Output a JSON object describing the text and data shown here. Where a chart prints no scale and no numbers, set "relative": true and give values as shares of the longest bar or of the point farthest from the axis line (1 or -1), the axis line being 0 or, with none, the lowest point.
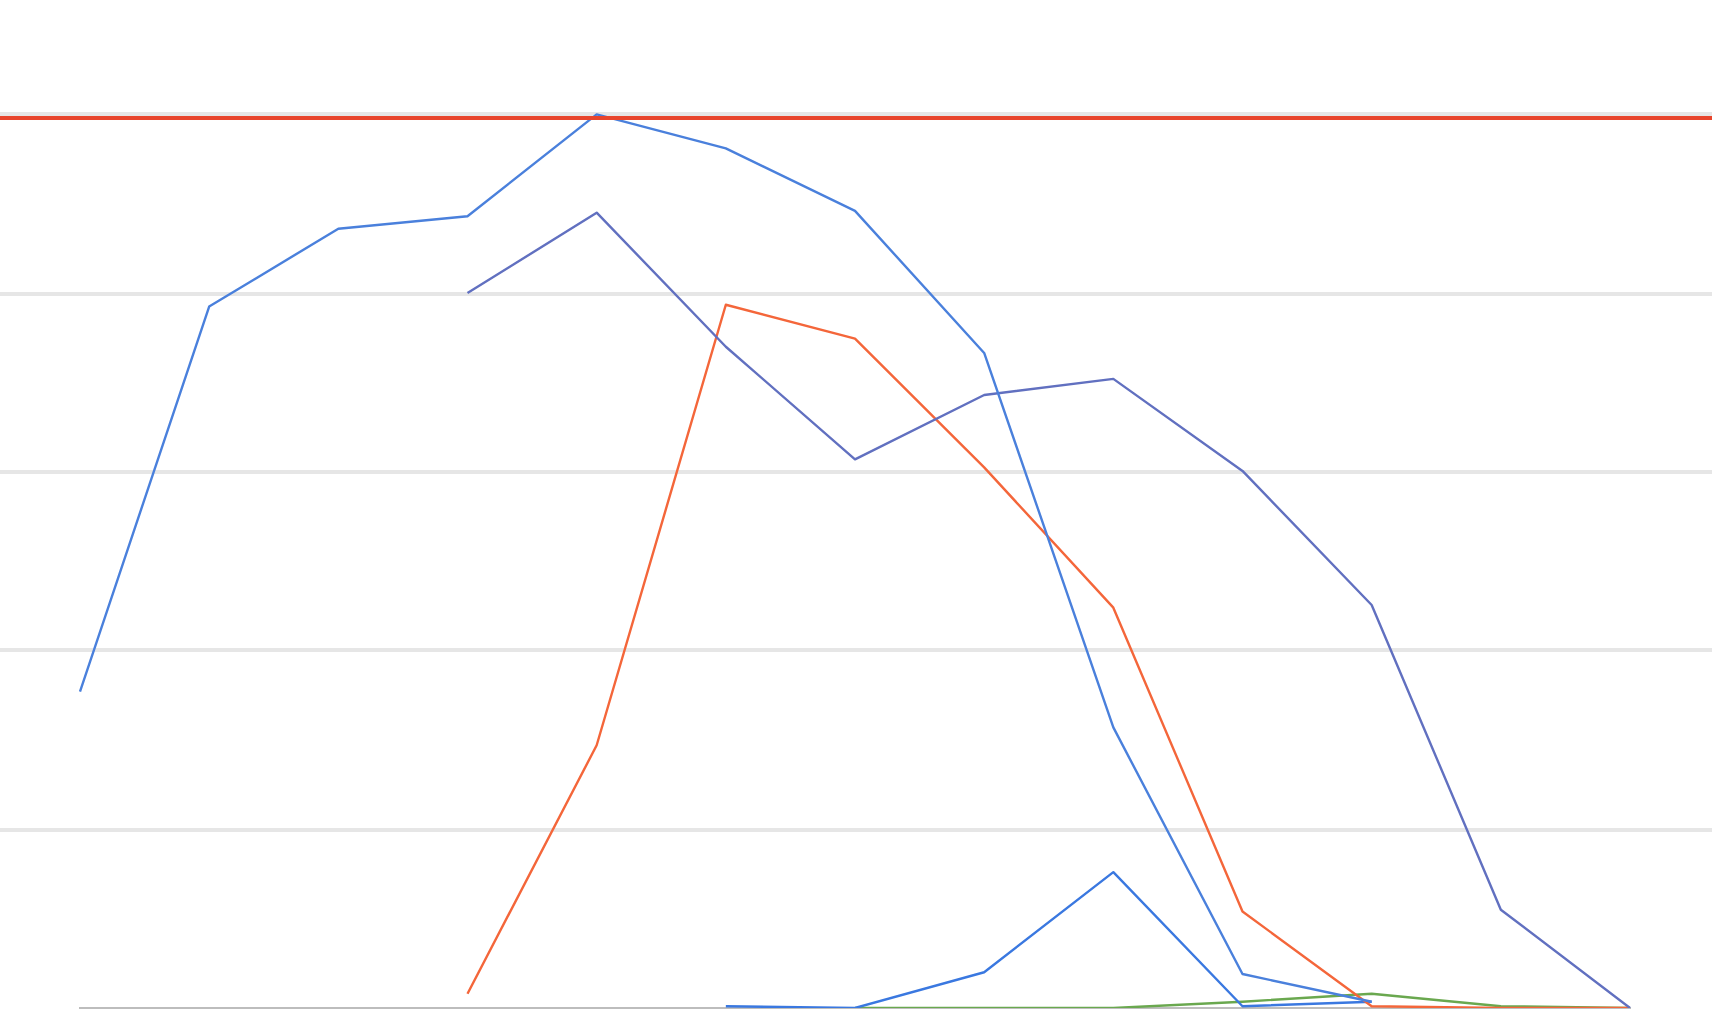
{
  "chart_data": {
    "type": "line",
    "relative": true,
    "categories": [
      null,
      null,
      null,
      null,
      null,
      null,
      null,
      null,
      null,
      null,
      null,
      null,
      null
    ],
    "series": [
      {
        "color": "#4a80dc",
        "values": [
          0.354,
          0.785,
          0.872,
          0.886,
          1.0,
          0.962,
          0.892,
          0.733,
          0.314,
          0.038,
          0.007,
          null,
          null
        ]
      },
      {
        "color": "#6170c0",
        "values": [
          null,
          null,
          null,
          0.8,
          0.89,
          0.74,
          0.614,
          0.686,
          0.704,
          0.601,
          0.451,
          0.11,
          0.0
        ]
      },
      {
        "color": "#f4663a",
        "values": [
          null,
          null,
          null,
          0.016,
          0.294,
          0.787,
          0.749,
          0.605,
          0.448,
          0.108,
          0.002,
          0.0,
          0.0
        ]
      },
      {
        "color": "#3a78e0",
        "values": [
          null,
          null,
          null,
          null,
          null,
          0.002,
          0.0,
          0.04,
          0.152,
          0.002,
          0.007,
          null,
          null
        ]
      },
      {
        "color": "#6aa84f",
        "values": [
          null,
          null,
          null,
          null,
          null,
          null,
          0.0,
          0.0,
          0.0,
          0.007,
          0.016,
          0.002,
          0.0
        ]
      }
    ],
    "ref_lines": [
      {
        "axis": "y",
        "value": 0.996,
        "color": "#e8452c"
      }
    ],
    "grid": "y",
    "legend": false,
    "marker": "none",
    "line_style": "solid"
  }
}
